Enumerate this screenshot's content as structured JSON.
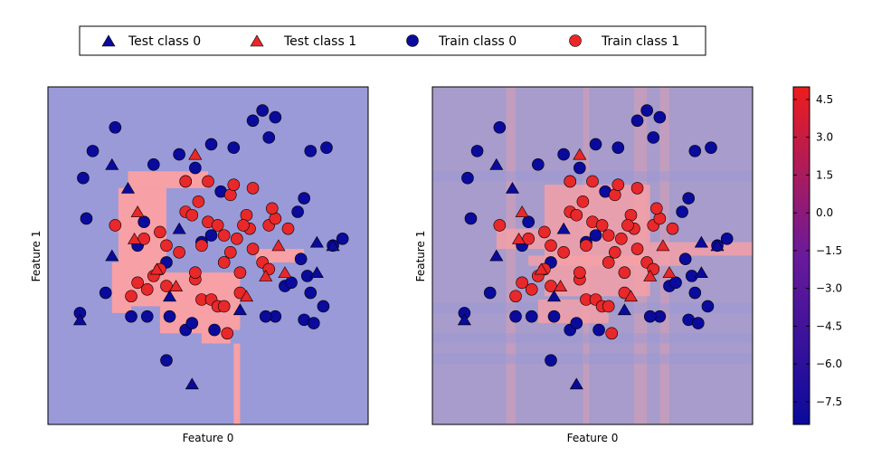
{
  "legend": {
    "items": [
      {
        "label": "Test class 0",
        "marker": "triangle",
        "color": "#0000aa"
      },
      {
        "label": "Test class 1",
        "marker": "triangle",
        "color": "#e8282a"
      },
      {
        "label": "Train class 0",
        "marker": "circle",
        "color": "#0000aa"
      },
      {
        "label": "Train class 1",
        "marker": "circle",
        "color": "#e8282a"
      }
    ],
    "placement": "top-center"
  },
  "colors": {
    "class0": "#0a0a9c",
    "class1": "#e8282a",
    "region0": "#9a9ad8",
    "region1": "#f7a0a5",
    "blend": "#a79ccb",
    "frame": "#000000"
  },
  "colorbar": {
    "ticks": [
      "4.5",
      "3.0",
      "1.5",
      "0.0",
      "−1.5",
      "−3.0",
      "−4.5",
      "−6.0",
      "−7.5"
    ],
    "range": [
      -8.4,
      5.0
    ],
    "colormap": [
      "#0a0a9c",
      "#6a1a9a",
      "#ee1c1c"
    ]
  },
  "chart_data": [
    {
      "type": "scatter",
      "title": "",
      "xlabel": "Feature 0",
      "ylabel": "Feature 1",
      "grid": false,
      "xlim": [
        0,
        100
      ],
      "ylim": [
        0,
        100
      ],
      "decision_regions": {
        "background_class": 0,
        "class1_boxes": [
          [
            25,
            50,
            70,
            75
          ],
          [
            22,
            37,
            35,
            70
          ],
          [
            35,
            60,
            28,
            45
          ],
          [
            20,
            26,
            33,
            48
          ],
          [
            35,
            52,
            27,
            33
          ],
          [
            48,
            57,
            24,
            30
          ],
          [
            65,
            80,
            48,
            52
          ],
          [
            26,
            27,
            55,
            70
          ],
          [
            58,
            60,
            0,
            24
          ]
        ]
      },
      "train_class0": [
        [
          14,
          81
        ],
        [
          21,
          88
        ],
        [
          11,
          73
        ],
        [
          12,
          61
        ],
        [
          46,
          76
        ],
        [
          51,
          83
        ],
        [
          58,
          82
        ],
        [
          64,
          90
        ],
        [
          54,
          69
        ],
        [
          33,
          77
        ],
        [
          41,
          80
        ],
        [
          43,
          72
        ],
        [
          67,
          93
        ],
        [
          71,
          91
        ],
        [
          69,
          85
        ],
        [
          82,
          81
        ],
        [
          87,
          82
        ],
        [
          80,
          67
        ],
        [
          78,
          63
        ],
        [
          51,
          56
        ],
        [
          48,
          54
        ],
        [
          30,
          60
        ],
        [
          28,
          53
        ],
        [
          74,
          41
        ],
        [
          79,
          49
        ],
        [
          89,
          53
        ],
        [
          92,
          55
        ],
        [
          71,
          32
        ],
        [
          82,
          39
        ],
        [
          86,
          35
        ],
        [
          76,
          42
        ],
        [
          81,
          44
        ],
        [
          80,
          31
        ],
        [
          18,
          39
        ],
        [
          10,
          33
        ],
        [
          26,
          32
        ],
        [
          31,
          32
        ],
        [
          38,
          32
        ],
        [
          43,
          28
        ],
        [
          45,
          30
        ],
        [
          52,
          28
        ],
        [
          68,
          32
        ],
        [
          37,
          48
        ],
        [
          83,
          30
        ],
        [
          37,
          19
        ]
      ],
      "train_class1": [
        [
          21,
          59
        ],
        [
          43,
          72
        ],
        [
          47,
          66
        ],
        [
          50,
          72
        ],
        [
          43,
          63
        ],
        [
          57,
          68
        ],
        [
          58,
          71
        ],
        [
          64,
          70
        ],
        [
          50,
          60
        ],
        [
          53,
          59
        ],
        [
          55,
          56
        ],
        [
          48,
          53
        ],
        [
          59,
          55
        ],
        [
          63,
          58
        ],
        [
          62,
          62
        ],
        [
          69,
          59
        ],
        [
          71,
          61
        ],
        [
          64,
          52
        ],
        [
          57,
          51
        ],
        [
          45,
          62
        ],
        [
          35,
          57
        ],
        [
          37,
          53
        ],
        [
          35,
          46
        ],
        [
          33,
          44
        ],
        [
          31,
          40
        ],
        [
          26,
          38
        ],
        [
          28,
          42
        ],
        [
          37,
          41
        ],
        [
          46,
          43
        ],
        [
          48,
          37
        ],
        [
          51,
          37
        ],
        [
          53,
          35
        ],
        [
          55,
          35
        ],
        [
          60,
          45
        ],
        [
          60,
          39
        ],
        [
          67,
          48
        ],
        [
          69,
          46
        ],
        [
          55,
          48
        ],
        [
          70,
          64
        ],
        [
          75,
          58
        ],
        [
          41,
          51
        ],
        [
          46,
          45
        ],
        [
          61,
          59
        ],
        [
          56,
          27
        ],
        [
          30,
          55
        ]
      ],
      "test_class0": [
        [
          20,
          77
        ],
        [
          25,
          70
        ],
        [
          20,
          50
        ],
        [
          41,
          58
        ],
        [
          60,
          34
        ],
        [
          84,
          45
        ],
        [
          89,
          53
        ],
        [
          84,
          54
        ],
        [
          10,
          31
        ],
        [
          45,
          12
        ],
        [
          38,
          38
        ]
      ],
      "test_class1": [
        [
          46,
          80
        ],
        [
          28,
          63
        ],
        [
          27,
          55
        ],
        [
          34,
          46
        ],
        [
          40,
          41
        ],
        [
          68,
          44
        ],
        [
          72,
          53
        ],
        [
          74,
          45
        ],
        [
          62,
          38
        ]
      ]
    },
    {
      "type": "scatter",
      "title": "",
      "xlabel": "Feature 0",
      "ylabel": "Feature 1",
      "grid": false,
      "xlim": [
        0,
        100
      ],
      "ylim": [
        0,
        100
      ],
      "decision_function": {
        "background_class": 0,
        "class1_boxes": [
          [
            35,
            68,
            38,
            71
          ],
          [
            30,
            80,
            47,
            50
          ],
          [
            20,
            35,
            52,
            58
          ],
          [
            68,
            100,
            50,
            54
          ],
          [
            33,
            55,
            30,
            37
          ]
        ],
        "note_bands_x": [
          [
            23,
            26
          ],
          [
            63,
            67
          ],
          [
            71,
            74
          ],
          [
            47,
            49
          ]
        ],
        "note_bands_y": [
          [
            33,
            36
          ],
          [
            24,
            27
          ],
          [
            18,
            21
          ],
          [
            72,
            75
          ]
        ]
      },
      "train_class0": [
        [
          14,
          81
        ],
        [
          21,
          88
        ],
        [
          11,
          73
        ],
        [
          12,
          61
        ],
        [
          46,
          76
        ],
        [
          51,
          83
        ],
        [
          58,
          82
        ],
        [
          64,
          90
        ],
        [
          54,
          69
        ],
        [
          33,
          77
        ],
        [
          41,
          80
        ],
        [
          43,
          72
        ],
        [
          67,
          93
        ],
        [
          71,
          91
        ],
        [
          69,
          85
        ],
        [
          82,
          81
        ],
        [
          87,
          82
        ],
        [
          80,
          67
        ],
        [
          78,
          63
        ],
        [
          51,
          56
        ],
        [
          48,
          54
        ],
        [
          30,
          60
        ],
        [
          28,
          53
        ],
        [
          74,
          41
        ],
        [
          79,
          49
        ],
        [
          89,
          53
        ],
        [
          92,
          55
        ],
        [
          71,
          32
        ],
        [
          82,
          39
        ],
        [
          86,
          35
        ],
        [
          76,
          42
        ],
        [
          81,
          44
        ],
        [
          80,
          31
        ],
        [
          18,
          39
        ],
        [
          10,
          33
        ],
        [
          26,
          32
        ],
        [
          31,
          32
        ],
        [
          38,
          32
        ],
        [
          43,
          28
        ],
        [
          45,
          30
        ],
        [
          52,
          28
        ],
        [
          68,
          32
        ],
        [
          37,
          48
        ],
        [
          83,
          30
        ],
        [
          37,
          19
        ]
      ],
      "train_class1": [
        [
          21,
          59
        ],
        [
          43,
          72
        ],
        [
          47,
          66
        ],
        [
          50,
          72
        ],
        [
          43,
          63
        ],
        [
          57,
          68
        ],
        [
          58,
          71
        ],
        [
          64,
          70
        ],
        [
          50,
          60
        ],
        [
          53,
          59
        ],
        [
          55,
          56
        ],
        [
          48,
          53
        ],
        [
          59,
          55
        ],
        [
          63,
          58
        ],
        [
          62,
          62
        ],
        [
          69,
          59
        ],
        [
          71,
          61
        ],
        [
          64,
          52
        ],
        [
          57,
          51
        ],
        [
          45,
          62
        ],
        [
          35,
          57
        ],
        [
          37,
          53
        ],
        [
          35,
          46
        ],
        [
          33,
          44
        ],
        [
          31,
          40
        ],
        [
          26,
          38
        ],
        [
          28,
          42
        ],
        [
          37,
          41
        ],
        [
          46,
          43
        ],
        [
          48,
          37
        ],
        [
          51,
          37
        ],
        [
          53,
          35
        ],
        [
          55,
          35
        ],
        [
          60,
          45
        ],
        [
          60,
          39
        ],
        [
          67,
          48
        ],
        [
          69,
          46
        ],
        [
          55,
          48
        ],
        [
          70,
          64
        ],
        [
          75,
          58
        ],
        [
          41,
          51
        ],
        [
          46,
          45
        ],
        [
          61,
          59
        ],
        [
          56,
          27
        ],
        [
          30,
          55
        ]
      ],
      "test_class0": [
        [
          20,
          77
        ],
        [
          25,
          70
        ],
        [
          20,
          50
        ],
        [
          41,
          58
        ],
        [
          60,
          34
        ],
        [
          84,
          45
        ],
        [
          89,
          53
        ],
        [
          84,
          54
        ],
        [
          10,
          31
        ],
        [
          45,
          12
        ],
        [
          38,
          38
        ]
      ],
      "test_class1": [
        [
          46,
          80
        ],
        [
          28,
          63
        ],
        [
          27,
          55
        ],
        [
          34,
          46
        ],
        [
          40,
          41
        ],
        [
          68,
          44
        ],
        [
          72,
          53
        ],
        [
          74,
          45
        ],
        [
          62,
          38
        ]
      ]
    }
  ]
}
